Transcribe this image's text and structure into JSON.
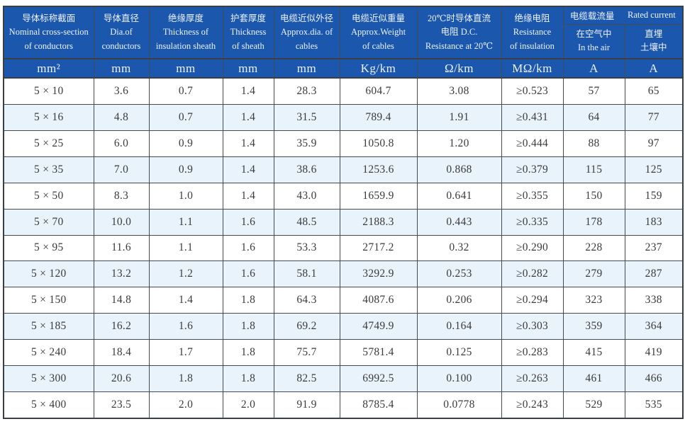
{
  "page": {
    "background": "#ffffff"
  },
  "table": {
    "header_bg": "#1b57ad",
    "header_text_color": "#eef3fb",
    "alt_row_bg": "#e9f3fb",
    "border_color": "#464b51",
    "data_text_color": "#3b3b3b",
    "columns": [
      {
        "id": "cross_section",
        "label": "导体标称截面\nNominal cross-section\nof conductors",
        "unit": "mm²"
      },
      {
        "id": "conductor_dia",
        "label": "导体直径\nDia.of\nconductors",
        "unit": "mm"
      },
      {
        "id": "insulation",
        "label": "绝缘厚度\nThickness of\ninsulation sheath",
        "unit": "mm"
      },
      {
        "id": "sheath",
        "label": "护套厚度\nThickness\nof sheath",
        "unit": "mm"
      },
      {
        "id": "approx_dia",
        "label": "电缆近似外径\nApprox.dia. of\ncables",
        "unit": "mm"
      },
      {
        "id": "approx_weight",
        "label": "电缆近似重量\nApprox.Weight\nof cables",
        "unit": "Kg/km"
      },
      {
        "id": "dc_resistance",
        "label": "20℃时导体直流\n电阻 D.C.\nResistance at 20℃",
        "unit": "Ω/km"
      },
      {
        "id": "ins_resistance",
        "label": "绝缘电阻\nResistance\nof insulation",
        "unit": "MΩ/km"
      }
    ],
    "current_group": {
      "title_zh": "电缆载流量",
      "title_en": "Rated current",
      "sub_columns": [
        {
          "id": "in_air",
          "label": "在空气中\nIn the air",
          "unit": "A"
        },
        {
          "id": "buried",
          "label": "直埋\n土壤中",
          "unit": "A"
        }
      ]
    },
    "rows": [
      [
        "5 × 10",
        "3.6",
        "0.7",
        "1.4",
        "28.3",
        "604.7",
        "3.08",
        "≥0.523",
        "57",
        "65"
      ],
      [
        "5 × 16",
        "4.8",
        "0.7",
        "1.4",
        "31.5",
        "789.4",
        "1.91",
        "≥0.431",
        "64",
        "77"
      ],
      [
        "5 × 25",
        "6.0",
        "0.9",
        "1.4",
        "35.9",
        "1050.8",
        "1.20",
        "≥0.444",
        "88",
        "97"
      ],
      [
        "5 × 35",
        "7.0",
        "0.9",
        "1.4",
        "38.6",
        "1253.6",
        "0.868",
        "≥0.379",
        "115",
        "125"
      ],
      [
        "5 × 50",
        "8.3",
        "1.0",
        "1.4",
        "43.0",
        "1659.9",
        "0.641",
        "≥0.355",
        "150",
        "159"
      ],
      [
        "5 × 70",
        "10.0",
        "1.1",
        "1.6",
        "48.5",
        "2188.3",
        "0.443",
        "≥0.335",
        "178",
        "183"
      ],
      [
        "5 × 95",
        "11.6",
        "1.1",
        "1.6",
        "53.3",
        "2717.2",
        "0.32",
        "≥0.290",
        "228",
        "237"
      ],
      [
        "5 × 120",
        "13.2",
        "1.2",
        "1.6",
        "58.1",
        "3292.9",
        "0.253",
        "≥0.282",
        "279",
        "287"
      ],
      [
        "5 × 150",
        "14.8",
        "1.4",
        "1.8",
        "64.3",
        "4087.6",
        "0.206",
        "≥0.294",
        "323",
        "338"
      ],
      [
        "5 × 185",
        "16.2",
        "1.6",
        "1.8",
        "69.2",
        "4749.9",
        "0.164",
        "≥0.303",
        "359",
        "364"
      ],
      [
        "5 × 240",
        "18.4",
        "1.7",
        "1.8",
        "75.7",
        "5781.4",
        "0.125",
        "≥0.283",
        "415",
        "419"
      ],
      [
        "5 × 300",
        "20.6",
        "1.8",
        "1.8",
        "82.5",
        "6992.5",
        "0.100",
        "≥0.263",
        "461",
        "466"
      ],
      [
        "5 × 400",
        "23.5",
        "2.0",
        "2.0",
        "91.9",
        "8785.4",
        "0.0778",
        "≥0.243",
        "529",
        "535"
      ]
    ]
  },
  "chart_data": {
    "type": "table",
    "title": "5-core cable specification table",
    "columns": [
      "Nominal cross-section of conductors (mm²)",
      "Dia. of conductors (mm)",
      "Thickness of insulation sheath (mm)",
      "Thickness of sheath (mm)",
      "Approx. dia. of cables (mm)",
      "Approx. weight of cables (Kg/km)",
      "D.C. resistance at 20℃ (Ω/km)",
      "Resistance of insulation (MΩ/km)",
      "Rated current in the air (A)",
      "Rated current buried in soil (A)"
    ],
    "rows": [
      [
        "5 × 10",
        3.6,
        0.7,
        1.4,
        28.3,
        604.7,
        3.08,
        "≥0.523",
        57,
        65
      ],
      [
        "5 × 16",
        4.8,
        0.7,
        1.4,
        31.5,
        789.4,
        1.91,
        "≥0.431",
        64,
        77
      ],
      [
        "5 × 25",
        6.0,
        0.9,
        1.4,
        35.9,
        1050.8,
        1.2,
        "≥0.444",
        88,
        97
      ],
      [
        "5 × 35",
        7.0,
        0.9,
        1.4,
        38.6,
        1253.6,
        0.868,
        "≥0.379",
        115,
        125
      ],
      [
        "5 × 50",
        8.3,
        1.0,
        1.4,
        43.0,
        1659.9,
        0.641,
        "≥0.355",
        150,
        159
      ],
      [
        "5 × 70",
        10.0,
        1.1,
        1.6,
        48.5,
        2188.3,
        0.443,
        "≥0.335",
        178,
        183
      ],
      [
        "5 × 95",
        11.6,
        1.1,
        1.6,
        53.3,
        2717.2,
        0.32,
        "≥0.290",
        228,
        237
      ],
      [
        "5 × 120",
        13.2,
        1.2,
        1.6,
        58.1,
        3292.9,
        0.253,
        "≥0.282",
        279,
        287
      ],
      [
        "5 × 150",
        14.8,
        1.4,
        1.8,
        64.3,
        4087.6,
        0.206,
        "≥0.294",
        323,
        338
      ],
      [
        "5 × 185",
        16.2,
        1.6,
        1.8,
        69.2,
        4749.9,
        0.164,
        "≥0.303",
        359,
        364
      ],
      [
        "5 × 240",
        18.4,
        1.7,
        1.8,
        75.7,
        5781.4,
        0.125,
        "≥0.283",
        415,
        419
      ],
      [
        "5 × 300",
        20.6,
        1.8,
        1.8,
        82.5,
        6992.5,
        0.1,
        "≥0.263",
        461,
        466
      ],
      [
        "5 × 400",
        23.5,
        2.0,
        2.0,
        91.9,
        8785.4,
        0.0778,
        "≥0.243",
        529,
        535
      ]
    ]
  }
}
